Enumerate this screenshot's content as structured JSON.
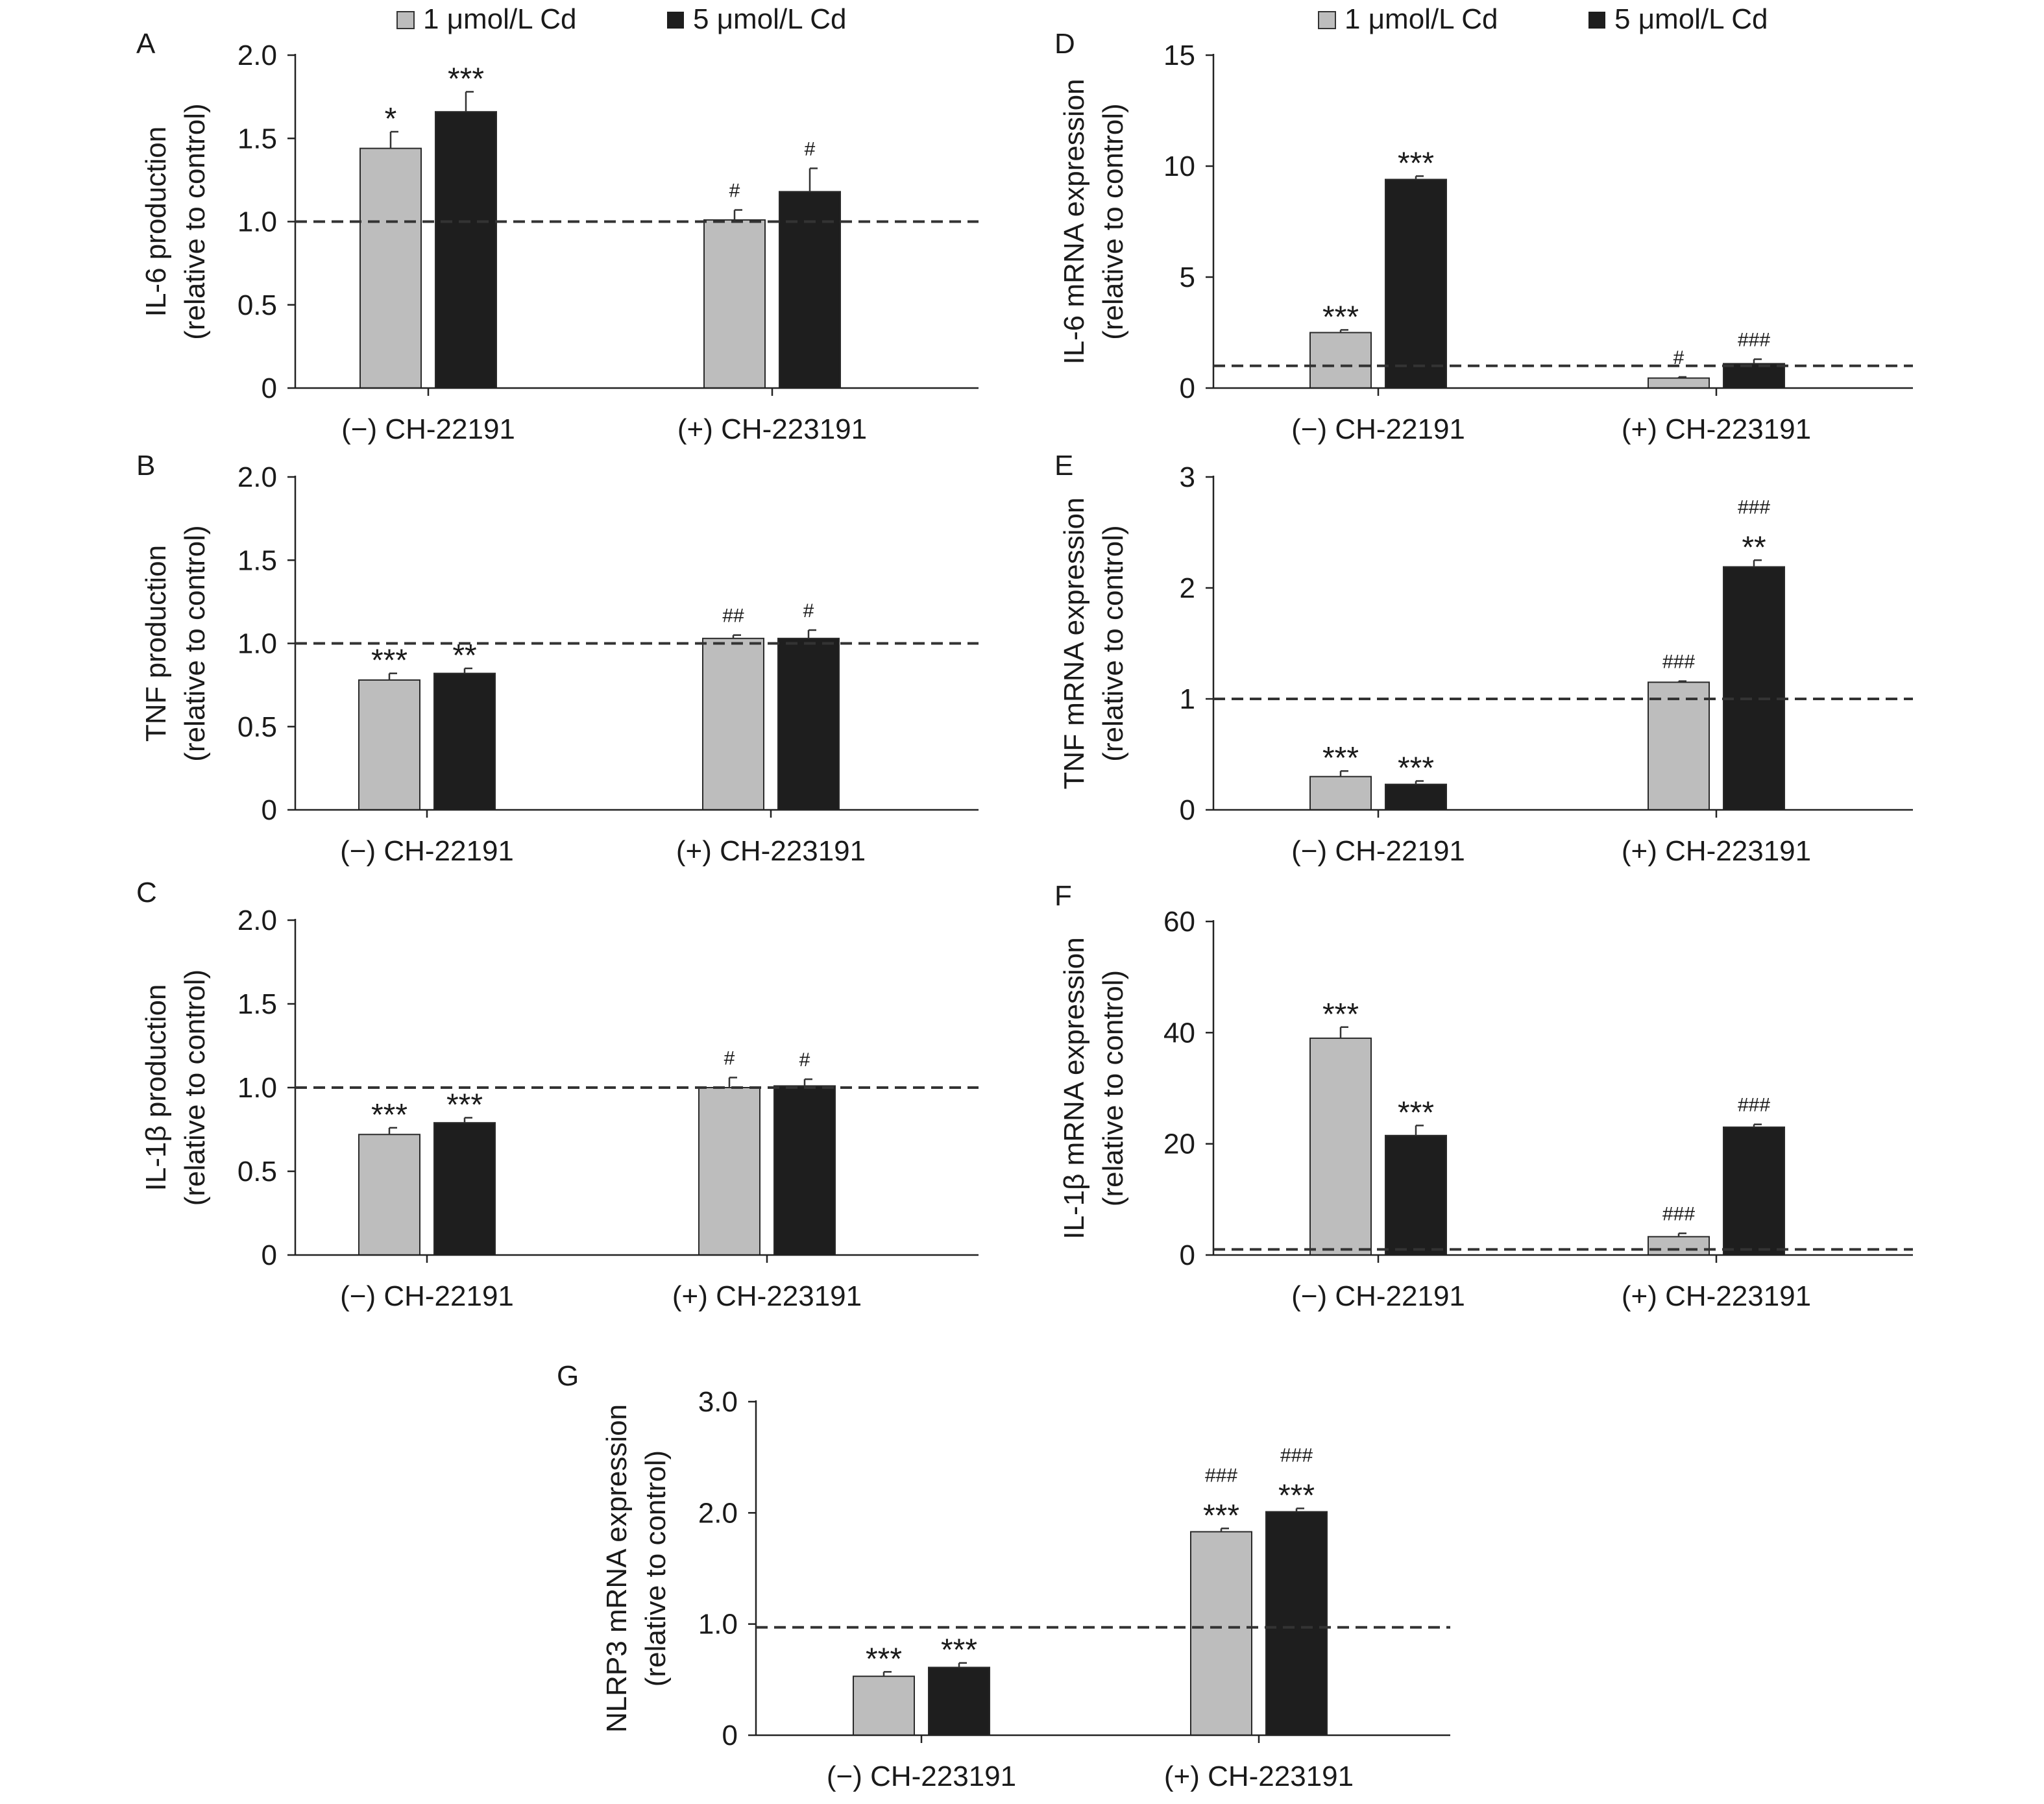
{
  "legend": {
    "position": "top",
    "items": [
      {
        "label": "1 μmol/L Cd",
        "color": "#bdbdbd"
      },
      {
        "label": "5 μmol/L Cd",
        "color": "#1e1e1e"
      }
    ]
  },
  "colors": {
    "bar_light": "#bdbdbd",
    "bar_dark": "#1e1e1e",
    "axis": "#222222",
    "reference_line": "#333333"
  },
  "chart_data": [
    {
      "panel": "A",
      "type": "bar",
      "ylabel_line1": "IL-6 production",
      "ylabel_line2": "(relative to control)",
      "ylim": [
        0,
        2.0
      ],
      "yticks": [
        "0",
        "0.5",
        "1.0",
        "1.5",
        "2.0"
      ],
      "ytick_values": [
        0,
        0.5,
        1.0,
        1.5,
        2.0
      ],
      "reference_line": 1.0,
      "categories": [
        "(−) CH-22191",
        "(+) CH-223191"
      ],
      "series": [
        {
          "name": "1 μmol/L Cd",
          "values": [
            1.44,
            1.01
          ],
          "errors": [
            0.1,
            0.06
          ],
          "annotations": [
            [
              "*"
            ],
            [
              "#"
            ]
          ]
        },
        {
          "name": "5 μmol/L Cd",
          "values": [
            1.66,
            1.18
          ],
          "errors": [
            0.12,
            0.14
          ],
          "annotations": [
            [
              "***"
            ],
            [
              "#"
            ]
          ]
        }
      ]
    },
    {
      "panel": "B",
      "type": "bar",
      "ylabel_line1": "TNF production",
      "ylabel_line2": "(relative to control)",
      "ylim": [
        0,
        2.0
      ],
      "yticks": [
        "0",
        "0.5",
        "1.0",
        "1.5",
        "2.0"
      ],
      "ytick_values": [
        0,
        0.5,
        1.0,
        1.5,
        2.0
      ],
      "reference_line": 1.0,
      "categories": [
        "(−) CH-22191",
        "(+) CH-223191"
      ],
      "series": [
        {
          "name": "1 μmol/L Cd",
          "values": [
            0.78,
            1.03
          ],
          "errors": [
            0.04,
            0.02
          ],
          "annotations": [
            [
              "***"
            ],
            [
              "##"
            ]
          ]
        },
        {
          "name": "5 μmol/L Cd",
          "values": [
            0.82,
            1.03
          ],
          "errors": [
            0.03,
            0.05
          ],
          "annotations": [
            [
              "**"
            ],
            [
              "#"
            ]
          ]
        }
      ]
    },
    {
      "panel": "C",
      "type": "bar",
      "ylabel_line1": "IL-1β production",
      "ylabel_line2": "(relative to control)",
      "ylim": [
        0,
        2.0
      ],
      "yticks": [
        "0",
        "0.5",
        "1.0",
        "1.5",
        "2.0"
      ],
      "ytick_values": [
        0,
        0.5,
        1.0,
        1.5,
        2.0
      ],
      "reference_line": 1.0,
      "categories": [
        "(−) CH-22191",
        "(+) CH-223191"
      ],
      "series": [
        {
          "name": "1 μmol/L Cd",
          "values": [
            0.72,
            1.0
          ],
          "errors": [
            0.04,
            0.06
          ],
          "annotations": [
            [
              "***"
            ],
            [
              "#"
            ]
          ]
        },
        {
          "name": "5 μmol/L Cd",
          "values": [
            0.79,
            1.01
          ],
          "errors": [
            0.03,
            0.04
          ],
          "annotations": [
            [
              "***"
            ],
            [
              "#"
            ]
          ]
        }
      ]
    },
    {
      "panel": "D",
      "type": "bar",
      "ylabel_line1": "IL-6 mRNA expression",
      "ylabel_line2": "(relative to control)",
      "ylim": [
        0,
        15
      ],
      "yticks": [
        "0",
        "5",
        "10",
        "15"
      ],
      "ytick_values": [
        0,
        5,
        10,
        15
      ],
      "reference_line": 1.0,
      "categories": [
        "(−) CH-22191",
        "(+) CH-223191"
      ],
      "series": [
        {
          "name": "1 μmol/L Cd",
          "values": [
            2.5,
            0.45
          ],
          "errors": [
            0.12,
            0.05
          ],
          "annotations": [
            [
              "***"
            ],
            [
              "#"
            ]
          ]
        },
        {
          "name": "5 μmol/L Cd",
          "values": [
            9.4,
            1.1
          ],
          "errors": [
            0.15,
            0.2
          ],
          "annotations": [
            [
              "***"
            ],
            [
              "###"
            ]
          ]
        }
      ]
    },
    {
      "panel": "E",
      "type": "bar",
      "ylabel_line1": "TNF mRNA expression",
      "ylabel_line2": "(relative to control)",
      "ylim": [
        0,
        3
      ],
      "yticks": [
        "0",
        "1",
        "2",
        "3"
      ],
      "ytick_values": [
        0,
        1,
        2,
        3
      ],
      "reference_line": 1.0,
      "categories": [
        "(−) CH-22191",
        "(+) CH-223191"
      ],
      "series": [
        {
          "name": "1 μmol/L Cd",
          "values": [
            0.3,
            1.15
          ],
          "errors": [
            0.05,
            0.01
          ],
          "annotations": [
            [
              "***"
            ],
            [
              "###"
            ]
          ]
        },
        {
          "name": "5 μmol/L Cd",
          "values": [
            0.23,
            2.19
          ],
          "errors": [
            0.03,
            0.06
          ],
          "annotations": [
            [
              "***"
            ],
            [
              "**",
              "###"
            ]
          ]
        }
      ]
    },
    {
      "panel": "F",
      "type": "bar",
      "ylabel_line1": "IL-1β mRNA expression",
      "ylabel_line2": "(relative to control)",
      "ylim": [
        0,
        60
      ],
      "yticks": [
        "0",
        "20",
        "40",
        "60"
      ],
      "ytick_values": [
        0,
        20,
        40,
        60
      ],
      "reference_line": 1.0,
      "categories": [
        "(−) CH-22191",
        "(+) CH-223191"
      ],
      "series": [
        {
          "name": "1 μmol/L Cd",
          "values": [
            39.0,
            3.3
          ],
          "errors": [
            2.0,
            0.6
          ],
          "annotations": [
            [
              "***"
            ],
            [
              "###"
            ]
          ]
        },
        {
          "name": "5 μmol/L Cd",
          "values": [
            21.5,
            23.0
          ],
          "errors": [
            1.8,
            0.5
          ],
          "annotations": [
            [
              "***"
            ],
            [
              "###"
            ]
          ]
        }
      ]
    },
    {
      "panel": "G",
      "type": "bar",
      "ylabel_line1": "NLRP3 mRNA expression",
      "ylabel_line2": "(relative to control)",
      "ylim": [
        0,
        3.0
      ],
      "yticks": [
        "0",
        "1.0",
        "2.0",
        "3.0"
      ],
      "ytick_values": [
        0,
        1.0,
        2.0,
        3.0
      ],
      "reference_line": 0.97,
      "categories": [
        "(−) CH-223191",
        "(+) CH-223191"
      ],
      "series": [
        {
          "name": "1 μmol/L Cd",
          "values": [
            0.53,
            1.83
          ],
          "errors": [
            0.04,
            0.03
          ],
          "annotations": [
            [
              "***"
            ],
            [
              "***",
              "###"
            ]
          ]
        },
        {
          "name": "5 μmol/L Cd",
          "values": [
            0.61,
            2.01
          ],
          "errors": [
            0.04,
            0.03
          ],
          "annotations": [
            [
              "***"
            ],
            [
              "***",
              "###"
            ]
          ]
        }
      ]
    }
  ]
}
